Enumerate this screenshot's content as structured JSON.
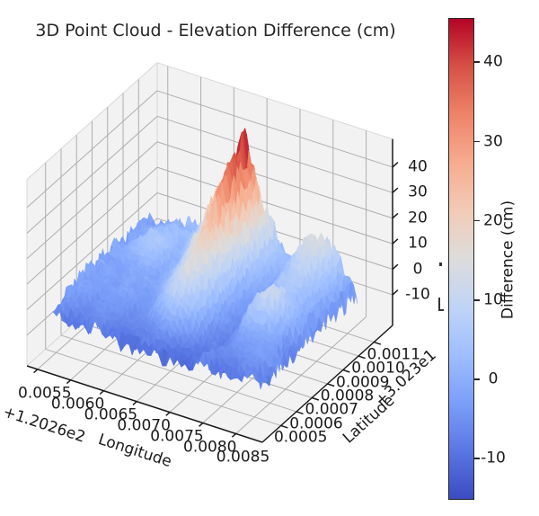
{
  "title": "3D Point Cloud - Elevation Difference (cm)",
  "axes": {
    "x": {
      "label": "Longitude",
      "offset_text": "+1.2026e2",
      "tick_labels": [
        "0.0055",
        "0.0060",
        "0.0065",
        "0.0070",
        "0.0075",
        "0.0080",
        "0.0085"
      ]
    },
    "y": {
      "label": "Latitude",
      "offset_text": "+3.023e1",
      "tick_labels": [
        "0.0005",
        "0.0006",
        "0.0007",
        "0.0008",
        "0.0009",
        "0.0010",
        "0.0011"
      ]
    },
    "z": {
      "tick_labels": [
        "-10",
        "0",
        "10",
        "20",
        "30",
        "40"
      ]
    }
  },
  "colorbar": {
    "label": "Difference (cm)",
    "tick_labels": [
      "40",
      "30",
      "20",
      "10",
      "0",
      "-10"
    ],
    "tick_values": [
      40,
      30,
      20,
      10,
      0,
      -10
    ],
    "vmin": -15.2,
    "vmax": 45.6,
    "colormap": "coolwarm",
    "colormap_stops": [
      "#3b4cc0",
      "#5977e3",
      "#7b9ff9",
      "#9ebeff",
      "#c0d4f5",
      "#dddcdc",
      "#f2cbb7",
      "#f7ac8e",
      "#ee8468",
      "#d65244",
      "#b40426"
    ]
  },
  "chart_data": {
    "type": "surface",
    "title": "3D Point Cloud - Elevation Difference (cm)",
    "xlabel": "Longitude",
    "ylabel": "Latitude",
    "zlabel": "",
    "colormap": "coolwarm",
    "grid": true,
    "x_tick_values": [
      120.2655,
      120.266,
      120.2665,
      120.267,
      120.2675,
      120.268,
      120.2685
    ],
    "y_tick_values": [
      30.2305,
      30.2306,
      30.2307,
      30.2308,
      30.2309,
      30.231,
      30.2311
    ],
    "z_tick_values": [
      -10,
      0,
      10,
      20,
      30,
      40
    ],
    "xlim": [
      120.26534,
      120.2689
    ],
    "ylim": [
      30.23038,
      30.23122
    ],
    "zlim": [
      -22,
      51
    ],
    "color_range_cm": [
      -15.2,
      45.6
    ],
    "surface_lon_range": [
      120.26545,
      120.26865
    ],
    "surface_lat_range": [
      30.2305,
      30.2311
    ],
    "peak": {
      "lon": 120.26708,
      "lat": 30.23108,
      "value_cm": 45.5
    },
    "style": "jagged trisurf point-cloud; tall red ridge at mid-longitude rising toward high latitude, low blue terrain elsewhere, deep blue fringes at edges",
    "elevation_grid_cm": [
      [
        -7,
        -8,
        -10,
        -7,
        -9,
        -11,
        -8,
        -10,
        -12,
        -9,
        -7,
        -10,
        -8,
        -6,
        -8
      ],
      [
        -5,
        -6,
        -7,
        -5,
        -8,
        -9,
        -6,
        -7,
        -9,
        -10,
        -6,
        -8,
        -6,
        -5,
        -7
      ],
      [
        -4,
        -4,
        -5,
        -4,
        -6,
        -5,
        -4,
        2,
        -3,
        -8,
        -7,
        -5,
        -4,
        -3,
        -6
      ],
      [
        -3,
        -3,
        -4,
        -3,
        -5,
        -4,
        3,
        10,
        4,
        -6,
        -8,
        -4,
        -3,
        -2,
        -6
      ],
      [
        -3,
        -3,
        -3,
        -2,
        -4,
        -2,
        6,
        14,
        6,
        -5,
        -7,
        2,
        0,
        -2,
        -7
      ],
      [
        -2,
        -2,
        -3,
        -2,
        -3,
        0,
        8,
        16,
        8,
        -4,
        -6,
        6,
        10,
        -1,
        -6
      ],
      [
        -3,
        -2,
        -2,
        -1,
        -2,
        2,
        10,
        18,
        9,
        -3,
        -5,
        8,
        12,
        3,
        -5
      ],
      [
        -2,
        -2,
        -2,
        0,
        -2,
        3,
        12,
        22,
        10,
        -2,
        -4,
        4,
        8,
        2,
        -5
      ],
      [
        -3,
        -1,
        2,
        4,
        -1,
        4,
        15,
        26,
        12,
        -1,
        -3,
        2,
        5,
        1,
        -6
      ],
      [
        -2,
        0,
        4,
        6,
        0,
        6,
        18,
        30,
        14,
        0,
        -2,
        4,
        6,
        2,
        -5
      ],
      [
        -3,
        -1,
        5,
        5,
        1,
        8,
        22,
        34,
        16,
        2,
        -1,
        6,
        8,
        3,
        -6
      ],
      [
        -2,
        -2,
        3,
        4,
        2,
        10,
        26,
        38,
        18,
        3,
        0,
        8,
        10,
        4,
        -5
      ],
      [
        -3,
        -1,
        2,
        3,
        3,
        12,
        28,
        42,
        20,
        4,
        1,
        10,
        12,
        5,
        -6
      ],
      [
        -2,
        -2,
        1,
        2,
        2,
        10,
        24,
        45,
        22,
        5,
        2,
        12,
        15,
        6,
        -5
      ],
      [
        -3,
        -3,
        0,
        1,
        1,
        8,
        18,
        28,
        14,
        3,
        0,
        8,
        10,
        4,
        -6
      ]
    ]
  }
}
